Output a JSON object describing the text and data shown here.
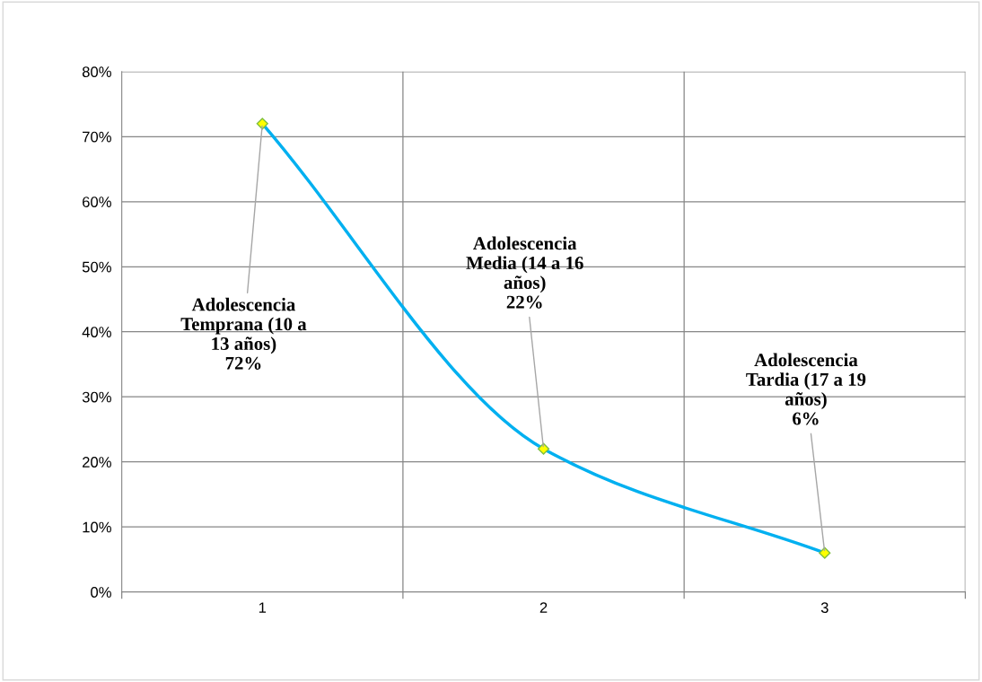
{
  "chart_data": {
    "type": "line",
    "categories": [
      "1",
      "2",
      "3"
    ],
    "series": [
      {
        "color": "#00b0f0",
        "values": [
          72,
          22,
          6
        ]
      }
    ],
    "marker": "diamond",
    "ylim": [
      0,
      80
    ],
    "yticks": [
      {
        "value": 0,
        "label": "0%"
      },
      {
        "value": 10,
        "label": "10%"
      },
      {
        "value": 20,
        "label": "20%"
      },
      {
        "value": 30,
        "label": "30%"
      },
      {
        "value": 40,
        "label": "40%"
      },
      {
        "value": 50,
        "label": "50%"
      },
      {
        "value": 60,
        "label": "60%"
      },
      {
        "value": 70,
        "label": "70%"
      },
      {
        "value": 80,
        "label": "80%"
      }
    ],
    "grid": true,
    "annotations": [
      {
        "text": "Adolescencia\nTemprana (10 a\n13 años)\n72%",
        "x": "1",
        "y": 72
      },
      {
        "text": "Adolescencia\nMedia (14 a 16\naños)\n22%",
        "x": "2",
        "y": 22
      },
      {
        "text": "Adolescencia\nTardia (17 a 19\naños)\n6%",
        "x": "3",
        "y": 6
      }
    ]
  }
}
